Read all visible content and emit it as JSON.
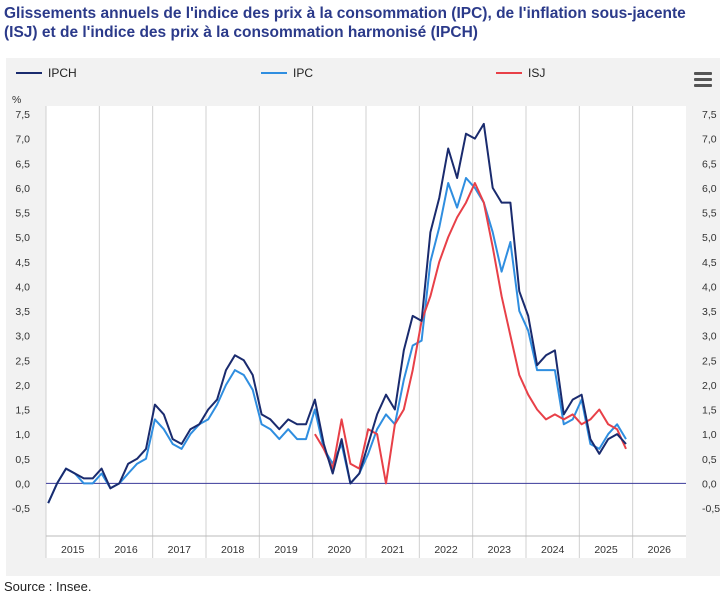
{
  "title": "Glissements annuels de l'indice des prix à la consommation (IPC), de l'inflation sous-jacente (ISJ) et de l'indice des prix à la consommation harmonisé (IPCH)",
  "source": "Source : Insee.",
  "menu_icon": "hamburger-menu-icon",
  "chart_data": {
    "type": "line",
    "ylabel": "%",
    "ylim": [
      -0.5,
      7.5
    ],
    "yticks": [
      "-0,5",
      "0,0",
      "0,5",
      "1,0",
      "1,5",
      "2,0",
      "2,5",
      "3,0",
      "3,5",
      "4,0",
      "4,5",
      "5,0",
      "5,5",
      "6,0",
      "6,5",
      "7,0",
      "7,5"
    ],
    "xlim": [
      "2015-01",
      "2026-12"
    ],
    "xticks": [
      "2015",
      "2016",
      "2017",
      "2018",
      "2019",
      "2020",
      "2021",
      "2022",
      "2023",
      "2024",
      "2025",
      "2026"
    ],
    "grid": "vertical-years",
    "legend": "top",
    "series": [
      {
        "name": "IPCH",
        "color": "#1a2b6e",
        "x": [
          "2015-01",
          "2015-03",
          "2015-05",
          "2015-07",
          "2015-09",
          "2015-11",
          "2016-01",
          "2016-03",
          "2016-05",
          "2016-07",
          "2016-09",
          "2016-11",
          "2017-01",
          "2017-03",
          "2017-05",
          "2017-07",
          "2017-09",
          "2017-11",
          "2018-01",
          "2018-03",
          "2018-05",
          "2018-07",
          "2018-09",
          "2018-11",
          "2019-01",
          "2019-03",
          "2019-05",
          "2019-07",
          "2019-09",
          "2019-11",
          "2020-01",
          "2020-03",
          "2020-05",
          "2020-07",
          "2020-09",
          "2020-11",
          "2021-01",
          "2021-03",
          "2021-05",
          "2021-07",
          "2021-09",
          "2021-11",
          "2022-01",
          "2022-03",
          "2022-05",
          "2022-07",
          "2022-09",
          "2022-11",
          "2023-01",
          "2023-03",
          "2023-05",
          "2023-07",
          "2023-09",
          "2023-11",
          "2024-01",
          "2024-03",
          "2024-05",
          "2024-07",
          "2024-09",
          "2024-11",
          "2025-01",
          "2025-03",
          "2025-05",
          "2025-07",
          "2025-09",
          "2025-11"
        ],
        "values": [
          -0.4,
          0.0,
          0.3,
          0.2,
          0.1,
          0.1,
          0.3,
          -0.1,
          0.0,
          0.4,
          0.5,
          0.7,
          1.6,
          1.4,
          0.9,
          0.8,
          1.1,
          1.2,
          1.5,
          1.7,
          2.3,
          2.6,
          2.5,
          2.2,
          1.4,
          1.3,
          1.1,
          1.3,
          1.2,
          1.2,
          1.7,
          0.8,
          0.2,
          0.9,
          0.0,
          0.2,
          0.8,
          1.4,
          1.8,
          1.5,
          2.7,
          3.4,
          3.3,
          5.1,
          5.8,
          6.8,
          6.2,
          7.1,
          7.0,
          7.3,
          6.0,
          5.7,
          5.7,
          3.9,
          3.4,
          2.4,
          2.6,
          2.7,
          1.4,
          1.7,
          1.8,
          0.9,
          0.6,
          0.9,
          1.0,
          0.8
        ]
      },
      {
        "name": "IPC",
        "color": "#2f8ee0",
        "x": [
          "2015-01",
          "2015-03",
          "2015-05",
          "2015-07",
          "2015-09",
          "2015-11",
          "2016-01",
          "2016-03",
          "2016-05",
          "2016-07",
          "2016-09",
          "2016-11",
          "2017-01",
          "2017-03",
          "2017-05",
          "2017-07",
          "2017-09",
          "2017-11",
          "2018-01",
          "2018-03",
          "2018-05",
          "2018-07",
          "2018-09",
          "2018-11",
          "2019-01",
          "2019-03",
          "2019-05",
          "2019-07",
          "2019-09",
          "2019-11",
          "2020-01",
          "2020-03",
          "2020-05",
          "2020-07",
          "2020-09",
          "2020-11",
          "2021-01",
          "2021-03",
          "2021-05",
          "2021-07",
          "2021-09",
          "2021-11",
          "2022-01",
          "2022-03",
          "2022-05",
          "2022-07",
          "2022-09",
          "2022-11",
          "2023-01",
          "2023-03",
          "2023-05",
          "2023-07",
          "2023-09",
          "2023-11",
          "2024-01",
          "2024-03",
          "2024-05",
          "2024-07",
          "2024-09",
          "2024-11",
          "2025-01",
          "2025-03",
          "2025-05",
          "2025-07",
          "2025-09",
          "2025-11"
        ],
        "values": [
          -0.4,
          0.0,
          0.3,
          0.2,
          0.0,
          0.0,
          0.2,
          -0.1,
          0.0,
          0.2,
          0.4,
          0.5,
          1.3,
          1.1,
          0.8,
          0.7,
          1.0,
          1.2,
          1.3,
          1.6,
          2.0,
          2.3,
          2.2,
          1.9,
          1.2,
          1.1,
          0.9,
          1.1,
          0.9,
          0.9,
          1.5,
          0.7,
          0.4,
          0.8,
          0.0,
          0.2,
          0.6,
          1.1,
          1.4,
          1.2,
          2.1,
          2.8,
          2.9,
          4.5,
          5.2,
          6.1,
          5.6,
          6.2,
          6.0,
          5.7,
          5.1,
          4.3,
          4.9,
          3.5,
          3.1,
          2.3,
          2.3,
          2.3,
          1.2,
          1.3,
          1.7,
          0.8,
          0.7,
          1.0,
          1.2,
          0.9
        ]
      },
      {
        "name": "ISJ",
        "color": "#e84048",
        "x": [
          "2020-01",
          "2020-03",
          "2020-05",
          "2020-07",
          "2020-09",
          "2020-11",
          "2021-01",
          "2021-03",
          "2021-05",
          "2021-07",
          "2021-09",
          "2021-11",
          "2022-01",
          "2022-03",
          "2022-05",
          "2022-07",
          "2022-09",
          "2022-11",
          "2023-01",
          "2023-03",
          "2023-05",
          "2023-07",
          "2023-09",
          "2023-11",
          "2024-01",
          "2024-03",
          "2024-05",
          "2024-07",
          "2024-09",
          "2024-11",
          "2025-01",
          "2025-03",
          "2025-05",
          "2025-07",
          "2025-09",
          "2025-11"
        ],
        "values": [
          1.0,
          0.7,
          0.3,
          1.3,
          0.4,
          0.3,
          1.1,
          1.0,
          0.0,
          1.2,
          1.5,
          2.3,
          3.3,
          3.8,
          4.5,
          5.0,
          5.4,
          5.7,
          6.1,
          5.7,
          4.8,
          3.8,
          3.0,
          2.2,
          1.8,
          1.5,
          1.3,
          1.4,
          1.3,
          1.4,
          1.2,
          1.3,
          1.5,
          1.2,
          1.1,
          0.7
        ]
      }
    ]
  }
}
